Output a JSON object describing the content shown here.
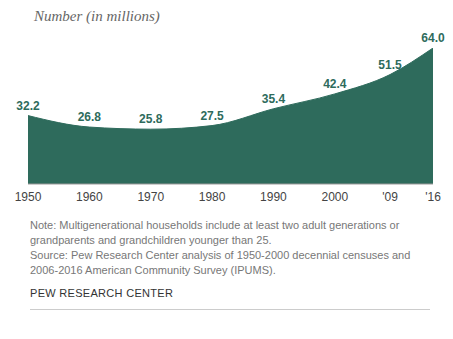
{
  "chart_data": {
    "type": "area",
    "y_label": "Number (in millions)",
    "x": [
      1950,
      1960,
      1970,
      1980,
      1990,
      2000,
      2009,
      2016
    ],
    "values": [
      32.2,
      26.8,
      25.8,
      27.5,
      35.4,
      42.4,
      51.5,
      64.0
    ],
    "value_labels": [
      "32.2",
      "26.8",
      "25.8",
      "27.5",
      "35.4",
      "42.4",
      "51.5",
      "64.0"
    ],
    "data_labels": true,
    "color": "#2e6b5c",
    "xlim": [
      1950,
      2016
    ],
    "xticks": [
      1950,
      1960,
      1970,
      1980,
      1990,
      2000,
      {
        "value": 2009,
        "label": "'09"
      },
      {
        "value": 2016,
        "label": "'16"
      }
    ],
    "ylim": [
      0,
      64
    ],
    "tick_labels": "x",
    "grid": false,
    "note": "Note: Multigenerational households include at least two adult generations or grandparents and grandchildren younger than 25.",
    "source": "Source: Pew Research Center analysis of 1950-2000 decennial censuses and 2006-2016 American Community Survey (IPUMS).",
    "credit": "PEW RESEARCH CENTER"
  }
}
